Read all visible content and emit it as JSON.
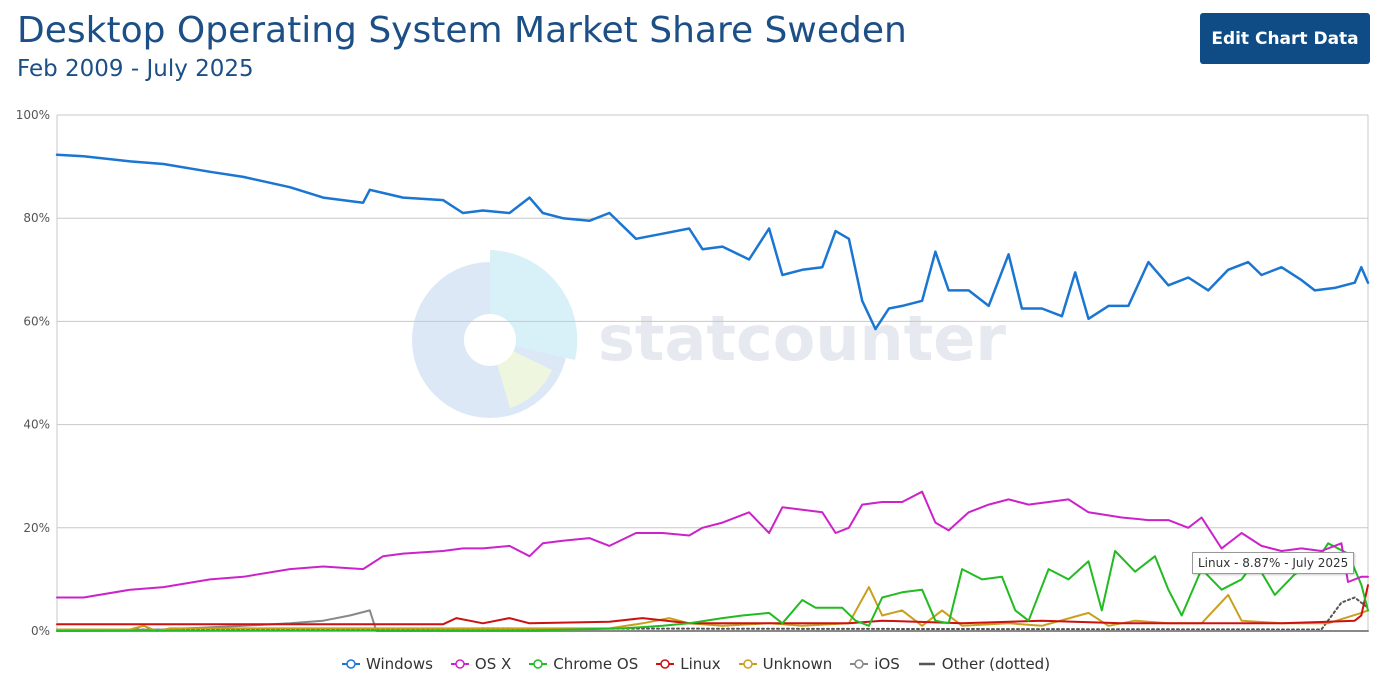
{
  "header": {
    "title": "Desktop Operating System Market Share Sweden",
    "subtitle": "Feb 2009 - July 2025",
    "edit_button_label": "Edit Chart Data"
  },
  "watermark": {
    "text": "statcounter"
  },
  "tooltip": {
    "text": "Linux - 8.87% - July 2025"
  },
  "colors": {
    "Windows": "#1a76d2",
    "OS X": "#cc22cc",
    "Chrome OS": "#22bb22",
    "Linux": "#cc1111",
    "Unknown": "#c9a01e",
    "iOS": "#888888",
    "Other (dotted)": "#555555",
    "grid": "#c8c8c8",
    "title": "#1b4f86",
    "button": "#0f4c86"
  },
  "chart_data": {
    "type": "line",
    "title": "Desktop Operating System Market Share Sweden",
    "subtitle": "Feb 2009 - July 2025",
    "x_start": "2009-02",
    "x_end": "2025-07",
    "ylim": [
      0,
      100
    ],
    "y_ticks": [
      "0%",
      "20%",
      "40%",
      "60%",
      "80%",
      "100%"
    ],
    "y_tick_values": [
      0,
      20,
      40,
      60,
      80,
      100
    ],
    "grid": true,
    "legend_position": "bottom",
    "annotation": "Linux - 8.87% - July 2025",
    "series": [
      {
        "name": "Windows",
        "points": [
          [
            "2009-02",
            92.3
          ],
          [
            "2009-06",
            92.0
          ],
          [
            "2010-01",
            91.0
          ],
          [
            "2010-06",
            90.5
          ],
          [
            "2011-01",
            89.0
          ],
          [
            "2011-06",
            88.0
          ],
          [
            "2012-01",
            86.0
          ],
          [
            "2012-06",
            84.0
          ],
          [
            "2012-12",
            83.0
          ],
          [
            "2013-01",
            85.5
          ],
          [
            "2013-06",
            84.0
          ],
          [
            "2013-12",
            83.5
          ],
          [
            "2014-03",
            81.0
          ],
          [
            "2014-06",
            81.5
          ],
          [
            "2014-10",
            81.0
          ],
          [
            "2015-01",
            84.0
          ],
          [
            "2015-03",
            81.0
          ],
          [
            "2015-06",
            80.0
          ],
          [
            "2015-10",
            79.5
          ],
          [
            "2016-01",
            81.0
          ],
          [
            "2016-05",
            76.0
          ],
          [
            "2016-09",
            77.0
          ],
          [
            "2017-01",
            78.0
          ],
          [
            "2017-03",
            74.0
          ],
          [
            "2017-06",
            74.5
          ],
          [
            "2017-10",
            72.0
          ],
          [
            "2018-01",
            78.0
          ],
          [
            "2018-03",
            69.0
          ],
          [
            "2018-06",
            70.0
          ],
          [
            "2018-09",
            70.5
          ],
          [
            "2018-11",
            77.5
          ],
          [
            "2019-01",
            76.0
          ],
          [
            "2019-03",
            64.0
          ],
          [
            "2019-05",
            58.5
          ],
          [
            "2019-07",
            62.5
          ],
          [
            "2019-09",
            63.0
          ],
          [
            "2019-12",
            64.0
          ],
          [
            "2020-02",
            73.5
          ],
          [
            "2020-04",
            66.0
          ],
          [
            "2020-07",
            66.0
          ],
          [
            "2020-10",
            63.0
          ],
          [
            "2021-01",
            73.0
          ],
          [
            "2021-03",
            62.5
          ],
          [
            "2021-06",
            62.5
          ],
          [
            "2021-09",
            61.0
          ],
          [
            "2021-11",
            69.5
          ],
          [
            "2022-01",
            60.5
          ],
          [
            "2022-04",
            63.0
          ],
          [
            "2022-07",
            63.0
          ],
          [
            "2022-10",
            71.5
          ],
          [
            "2023-01",
            67.0
          ],
          [
            "2023-04",
            68.5
          ],
          [
            "2023-07",
            66.0
          ],
          [
            "2023-10",
            70.0
          ],
          [
            "2024-01",
            71.5
          ],
          [
            "2024-03",
            69.0
          ],
          [
            "2024-06",
            70.5
          ],
          [
            "2024-09",
            68.0
          ],
          [
            "2024-11",
            66.0
          ],
          [
            "2025-02",
            66.5
          ],
          [
            "2025-05",
            67.5
          ],
          [
            "2025-06",
            70.5
          ],
          [
            "2025-07",
            67.5
          ]
        ]
      },
      {
        "name": "OS X",
        "points": [
          [
            "2009-02",
            6.5
          ],
          [
            "2009-06",
            6.5
          ],
          [
            "2010-01",
            8.0
          ],
          [
            "2010-06",
            8.5
          ],
          [
            "2011-01",
            10.0
          ],
          [
            "2011-06",
            10.5
          ],
          [
            "2012-01",
            12.0
          ],
          [
            "2012-06",
            12.5
          ],
          [
            "2012-12",
            12.0
          ],
          [
            "2013-03",
            14.5
          ],
          [
            "2013-06",
            15.0
          ],
          [
            "2013-12",
            15.5
          ],
          [
            "2014-03",
            16.0
          ],
          [
            "2014-06",
            16.0
          ],
          [
            "2014-10",
            16.5
          ],
          [
            "2015-01",
            14.5
          ],
          [
            "2015-03",
            17.0
          ],
          [
            "2015-06",
            17.5
          ],
          [
            "2015-10",
            18.0
          ],
          [
            "2016-01",
            16.5
          ],
          [
            "2016-05",
            19.0
          ],
          [
            "2016-09",
            19.0
          ],
          [
            "2017-01",
            18.5
          ],
          [
            "2017-03",
            20.0
          ],
          [
            "2017-06",
            21.0
          ],
          [
            "2017-10",
            23.0
          ],
          [
            "2018-01",
            19.0
          ],
          [
            "2018-03",
            24.0
          ],
          [
            "2018-06",
            23.5
          ],
          [
            "2018-09",
            23.0
          ],
          [
            "2018-11",
            19.0
          ],
          [
            "2019-01",
            20.0
          ],
          [
            "2019-03",
            24.5
          ],
          [
            "2019-06",
            25.0
          ],
          [
            "2019-09",
            25.0
          ],
          [
            "2019-12",
            27.0
          ],
          [
            "2020-02",
            21.0
          ],
          [
            "2020-04",
            19.5
          ],
          [
            "2020-07",
            23.0
          ],
          [
            "2020-10",
            24.5
          ],
          [
            "2021-01",
            25.5
          ],
          [
            "2021-04",
            24.5
          ],
          [
            "2021-07",
            25.0
          ],
          [
            "2021-10",
            25.5
          ],
          [
            "2022-01",
            23.0
          ],
          [
            "2022-06",
            22.0
          ],
          [
            "2022-10",
            21.5
          ],
          [
            "2023-01",
            21.5
          ],
          [
            "2023-04",
            20.0
          ],
          [
            "2023-06",
            22.0
          ],
          [
            "2023-09",
            16.0
          ],
          [
            "2023-12",
            19.0
          ],
          [
            "2024-03",
            16.5
          ],
          [
            "2024-06",
            15.5
          ],
          [
            "2024-09",
            16.0
          ],
          [
            "2024-12",
            15.5
          ],
          [
            "2025-03",
            17.0
          ],
          [
            "2025-04",
            9.5
          ],
          [
            "2025-06",
            10.5
          ],
          [
            "2025-07",
            10.5
          ]
        ]
      },
      {
        "name": "Chrome OS",
        "points": [
          [
            "2009-02",
            0.0
          ],
          [
            "2015-01",
            0.1
          ],
          [
            "2016-03",
            0.5
          ],
          [
            "2016-09",
            1.0
          ],
          [
            "2017-01",
            1.5
          ],
          [
            "2017-06",
            2.5
          ],
          [
            "2017-09",
            3.0
          ],
          [
            "2018-01",
            3.5
          ],
          [
            "2018-03",
            1.5
          ],
          [
            "2018-06",
            6.0
          ],
          [
            "2018-08",
            4.5
          ],
          [
            "2018-12",
            4.5
          ],
          [
            "2019-02",
            2.0
          ],
          [
            "2019-04",
            1.0
          ],
          [
            "2019-06",
            6.5
          ],
          [
            "2019-09",
            7.5
          ],
          [
            "2019-12",
            8.0
          ],
          [
            "2020-02",
            2.0
          ],
          [
            "2020-04",
            1.5
          ],
          [
            "2020-06",
            12.0
          ],
          [
            "2020-09",
            10.0
          ],
          [
            "2020-12",
            10.5
          ],
          [
            "2021-02",
            4.0
          ],
          [
            "2021-04",
            2.0
          ],
          [
            "2021-07",
            12.0
          ],
          [
            "2021-10",
            10.0
          ],
          [
            "2022-01",
            13.5
          ],
          [
            "2022-03",
            4.0
          ],
          [
            "2022-05",
            15.5
          ],
          [
            "2022-08",
            11.5
          ],
          [
            "2022-11",
            14.5
          ],
          [
            "2023-01",
            8.0
          ],
          [
            "2023-03",
            3.0
          ],
          [
            "2023-06",
            12.0
          ],
          [
            "2023-09",
            8.0
          ],
          [
            "2023-12",
            10.0
          ],
          [
            "2024-02",
            13.5
          ],
          [
            "2024-05",
            7.0
          ],
          [
            "2024-08",
            11.0
          ],
          [
            "2024-11",
            13.0
          ],
          [
            "2025-01",
            17.0
          ],
          [
            "2025-04",
            15.0
          ],
          [
            "2025-06",
            9.0
          ],
          [
            "2025-07",
            4.0
          ]
        ]
      },
      {
        "name": "Linux",
        "points": [
          [
            "2009-02",
            1.3
          ],
          [
            "2013-12",
            1.3
          ],
          [
            "2014-02",
            2.5
          ],
          [
            "2014-04",
            2.0
          ],
          [
            "2014-06",
            1.5
          ],
          [
            "2014-10",
            2.5
          ],
          [
            "2015-01",
            1.5
          ],
          [
            "2016-01",
            1.8
          ],
          [
            "2016-06",
            2.5
          ],
          [
            "2017-01",
            1.5
          ],
          [
            "2019-01",
            1.5
          ],
          [
            "2019-06",
            2.0
          ],
          [
            "2020-06",
            1.5
          ],
          [
            "2021-06",
            2.0
          ],
          [
            "2022-06",
            1.5
          ],
          [
            "2023-06",
            1.5
          ],
          [
            "2024-06",
            1.5
          ],
          [
            "2025-01",
            1.8
          ],
          [
            "2025-05",
            2.0
          ],
          [
            "2025-06",
            3.0
          ],
          [
            "2025-07",
            8.87
          ]
        ]
      },
      {
        "name": "Unknown",
        "points": [
          [
            "2009-02",
            0.3
          ],
          [
            "2010-01",
            0.3
          ],
          [
            "2010-03",
            1.0
          ],
          [
            "2010-05",
            0.0
          ],
          [
            "2010-07",
            0.5
          ],
          [
            "2012-12",
            0.5
          ],
          [
            "2015-01",
            0.5
          ],
          [
            "2016-01",
            0.5
          ],
          [
            "2016-06",
            1.5
          ],
          [
            "2016-10",
            2.5
          ],
          [
            "2017-01",
            1.5
          ],
          [
            "2017-06",
            1.0
          ],
          [
            "2018-01",
            1.5
          ],
          [
            "2018-06",
            1.0
          ],
          [
            "2019-01",
            1.5
          ],
          [
            "2019-04",
            8.5
          ],
          [
            "2019-06",
            3.0
          ],
          [
            "2019-09",
            4.0
          ],
          [
            "2019-12",
            1.0
          ],
          [
            "2020-03",
            4.0
          ],
          [
            "2020-06",
            1.0
          ],
          [
            "2021-01",
            1.5
          ],
          [
            "2021-06",
            1.0
          ],
          [
            "2022-01",
            3.5
          ],
          [
            "2022-04",
            1.0
          ],
          [
            "2022-08",
            2.0
          ],
          [
            "2023-01",
            1.5
          ],
          [
            "2023-06",
            1.5
          ],
          [
            "2023-10",
            7.0
          ],
          [
            "2023-12",
            2.0
          ],
          [
            "2024-06",
            1.5
          ],
          [
            "2025-01",
            1.5
          ],
          [
            "2025-06",
            3.5
          ],
          [
            "2025-07",
            4.0
          ]
        ]
      },
      {
        "name": "iOS",
        "points": [
          [
            "2009-02",
            0.0
          ],
          [
            "2010-06",
            0.3
          ],
          [
            "2011-06",
            1.0
          ],
          [
            "2012-01",
            1.5
          ],
          [
            "2012-06",
            2.0
          ],
          [
            "2012-10",
            3.0
          ],
          [
            "2013-01",
            4.0
          ],
          [
            "2013-02",
            0.0
          ],
          [
            "2025-07",
            0.0
          ]
        ]
      },
      {
        "name": "Other (dotted)",
        "dotted": true,
        "points": [
          [
            "2009-02",
            0.3
          ],
          [
            "2013-02",
            0.3
          ],
          [
            "2014-06",
            0.5
          ],
          [
            "2024-12",
            0.3
          ],
          [
            "2025-03",
            5.5
          ],
          [
            "2025-05",
            6.5
          ],
          [
            "2025-07",
            4.5
          ]
        ]
      }
    ]
  }
}
